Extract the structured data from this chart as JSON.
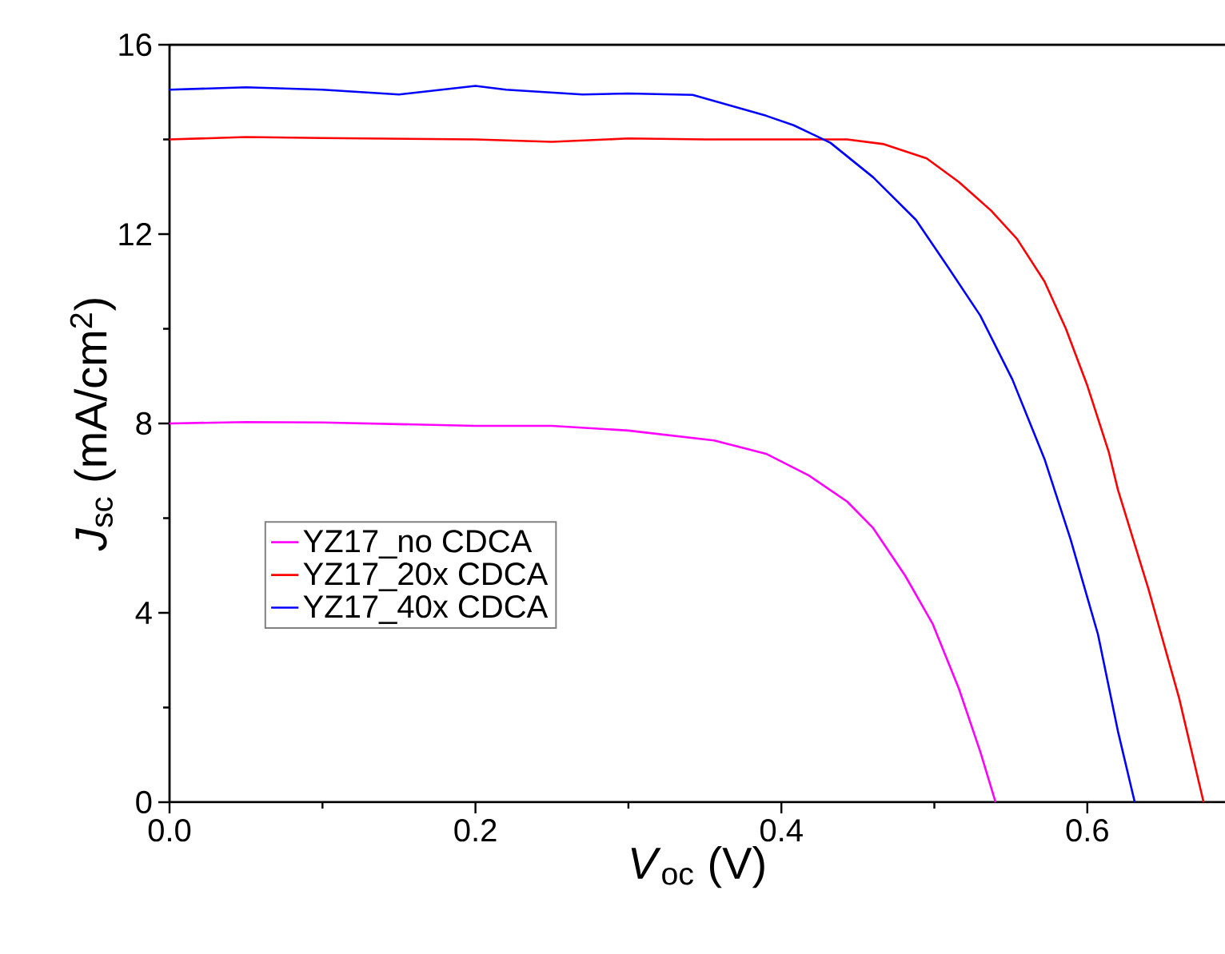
{
  "chart_data": {
    "type": "line",
    "xlabel": "*V*$_{oc}$ (V)",
    "ylabel": "*J*$_{sc}$ (mA/cm$^{2}$)",
    "xlim": [
      0,
      0.69
    ],
    "ylim": [
      0,
      16
    ],
    "xticks": [
      {
        "value": 0,
        "label": "0.0"
      },
      0.2,
      0.4,
      0.6
    ],
    "yticks": [
      0,
      4,
      8,
      12,
      16
    ],
    "legend": "left",
    "grid": false,
    "marker": "none",
    "line_style": "solid",
    "series": [
      {
        "name": "YZ17_no CDCA",
        "color": "#ff00ff",
        "x": [
          0,
          0.05,
          0.1,
          0.2,
          0.25,
          0.3,
          0.356,
          0.39,
          0.418,
          0.443,
          0.46,
          0.481,
          0.499,
          0.516,
          0.53,
          0.54
        ],
        "values": [
          8.0,
          8.03,
          8.02,
          7.95,
          7.95,
          7.85,
          7.64,
          7.36,
          6.9,
          6.35,
          5.79,
          4.78,
          3.76,
          2.4,
          1.07,
          0
        ]
      },
      {
        "name": "YZ17_20x CDCA",
        "color": "#ff0000",
        "x": [
          0,
          0.05,
          0.1,
          0.2,
          0.25,
          0.3,
          0.35,
          0.4,
          0.443,
          0.467,
          0.495,
          0.516,
          0.537,
          0.554,
          0.572,
          0.586,
          0.6,
          0.614,
          0.62,
          0.64,
          0.66,
          0.676
        ],
        "values": [
          14.0,
          14.05,
          14.03,
          14.0,
          13.95,
          14.02,
          14.0,
          14.0,
          14.0,
          13.9,
          13.6,
          13.1,
          12.5,
          11.9,
          11.0,
          10.0,
          8.8,
          7.4,
          6.6,
          4.5,
          2.2,
          0
        ]
      },
      {
        "name": "YZ17_40x CDCA",
        "color": "#0000ff",
        "x": [
          0,
          0.05,
          0.1,
          0.15,
          0.2,
          0.22,
          0.27,
          0.3,
          0.342,
          0.39,
          0.408,
          0.432,
          0.46,
          0.488,
          0.509,
          0.53,
          0.551,
          0.572,
          0.589,
          0.607,
          0.62,
          0.631
        ],
        "values": [
          15.05,
          15.1,
          15.05,
          14.95,
          15.13,
          15.05,
          14.95,
          14.97,
          14.94,
          14.5,
          14.3,
          13.93,
          13.2,
          12.3,
          11.3,
          10.28,
          8.93,
          7.25,
          5.56,
          3.54,
          1.5,
          0
        ]
      }
    ]
  }
}
